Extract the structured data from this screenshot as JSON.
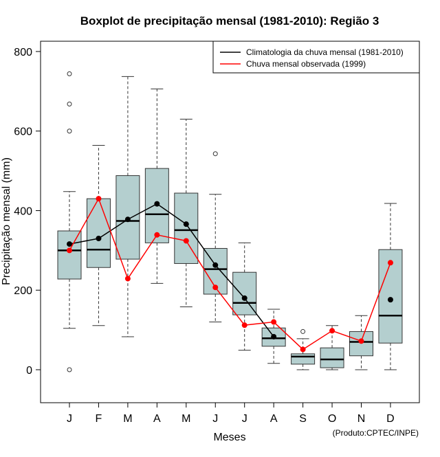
{
  "chart_data": {
    "type": "boxplot",
    "title": "Boxplot de precipitação mensal (1981-2010): Região 3",
    "xlabel": "Meses",
    "ylabel": "Precipitação mensal (mm)",
    "ylim": [
      -85,
      825
    ],
    "yticks": [
      0,
      200,
      400,
      600,
      800
    ],
    "credit": "(Produto:CPTEC/INPE)",
    "categories": [
      "J",
      "F",
      "M",
      "A",
      "M",
      "J",
      "J",
      "A",
      "S",
      "O",
      "N",
      "D"
    ],
    "boxes": [
      {
        "low": 104,
        "q1": 228,
        "median": 300,
        "q3": 349,
        "high": 448,
        "outliers": [
          744,
          668,
          600,
          0
        ]
      },
      {
        "low": 111,
        "q1": 257,
        "median": 302,
        "q3": 430,
        "high": 564,
        "outliers": []
      },
      {
        "low": 83,
        "q1": 278,
        "median": 374,
        "q3": 488,
        "high": 737,
        "outliers": []
      },
      {
        "low": 217,
        "q1": 319,
        "median": 391,
        "q3": 506,
        "high": 706,
        "outliers": []
      },
      {
        "low": 158,
        "q1": 267,
        "median": 351,
        "q3": 444,
        "high": 630,
        "outliers": []
      },
      {
        "low": 120,
        "q1": 190,
        "median": 253,
        "q3": 305,
        "high": 441,
        "outliers": [
          543
        ]
      },
      {
        "low": 49,
        "q1": 138,
        "median": 168,
        "q3": 245,
        "high": 319,
        "outliers": []
      },
      {
        "low": 16,
        "q1": 59,
        "median": 79,
        "q3": 105,
        "high": 152,
        "outliers": []
      },
      {
        "low": 0,
        "q1": 14,
        "median": 33,
        "q3": 40,
        "high": 78,
        "outliers": [
          96
        ]
      },
      {
        "low": 0,
        "q1": 5,
        "median": 26,
        "q3": 55,
        "high": 111,
        "outliers": []
      },
      {
        "low": 0,
        "q1": 35,
        "median": 70,
        "q3": 96,
        "high": 136,
        "outliers": []
      },
      {
        "low": 0,
        "q1": 67,
        "median": 136,
        "q3": 302,
        "high": 418,
        "outliers": []
      }
    ],
    "series": [
      {
        "name": "Climatologia da chuva mensal (1981-2010)",
        "color": "#000000",
        "values": [
          316,
          330,
          378,
          417,
          366,
          263,
          180,
          83,
          null,
          null,
          null,
          176
        ]
      },
      {
        "name": "Chuva mensal observada (1999)",
        "color": "#ff0000",
        "values": [
          300,
          430,
          229,
          339,
          324,
          207,
          112,
          120,
          51,
          98,
          72,
          269
        ]
      }
    ],
    "box_fill": "#b4cfcf",
    "legend_position": "top-right"
  }
}
